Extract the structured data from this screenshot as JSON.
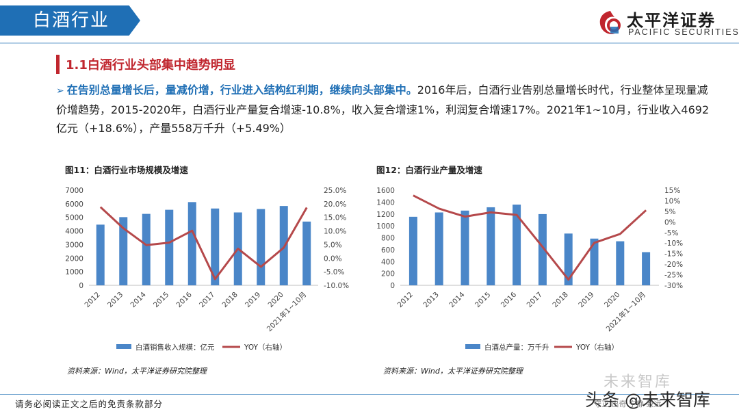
{
  "header": {
    "title": "白酒行业"
  },
  "brand": {
    "name_cn": "太平洋证券",
    "name_en": "PACIFIC SECURITIES",
    "color_red": "#c0262e",
    "color_blue": "#1f6fb5"
  },
  "section": {
    "title": "1.1白酒行业头部集中趋势明显"
  },
  "paragraph": {
    "bullet": "➢",
    "lead": "在告别总量增长后，量减价增，行业进入结构红利期，继续向头部集中。",
    "body": "2016年后，白酒行业告别总量增长时代，行业整体呈现量减价增趋势，2015-2020年，白酒行业产量复合增速-10.8%，收入复合增速1%，利润复合增速17%。2021年1~10月，行业收入4692亿元（+18.6%），产量558万千升（+5.49%）"
  },
  "chart_data": [
    {
      "type": "bar",
      "title": "图11：白酒行业市场规模及增速",
      "categories": [
        "2012",
        "2013",
        "2014",
        "2015",
        "2016",
        "2017",
        "2018",
        "2019",
        "2020",
        "2021年1~10月"
      ],
      "series": [
        {
          "name": "白酒销售收入规模：亿元",
          "kind": "bar",
          "axis": "left",
          "color": "#4a86c8",
          "values": [
            4466,
            5018,
            5258,
            5559,
            6126,
            5654,
            5364,
            5618,
            5836,
            4692
          ]
        },
        {
          "name": "YOY（右轴）",
          "kind": "line",
          "axis": "right",
          "color": "#b5494b",
          "values": [
            18.8,
            11.0,
            4.8,
            5.7,
            10.1,
            -7.7,
            3.5,
            -3.2,
            3.9,
            18.6
          ]
        }
      ],
      "ylim_left": [
        0,
        7000
      ],
      "ylim_right": [
        -10,
        25
      ],
      "yticks_left": [
        "0",
        "1000",
        "2000",
        "3000",
        "4000",
        "5000",
        "6000",
        "7000"
      ],
      "yticks_right": [
        "-10.0%",
        "-5.0%",
        "0.0%",
        "5.0%",
        "10.0%",
        "15.0%",
        "20.0%",
        "25.0%"
      ],
      "legend": "bottom",
      "source": "资料来源：Wind，太平洋证券研究院整理"
    },
    {
      "type": "bar",
      "title": "图12：白酒行业产量及增速",
      "categories": [
        "2012",
        "2013",
        "2014",
        "2015",
        "2016",
        "2017",
        "2018",
        "2019",
        "2020",
        "2021年1~10月"
      ],
      "series": [
        {
          "name": "白酒总产量：万千升",
          "kind": "bar",
          "axis": "left",
          "color": "#4a86c8",
          "values": [
            1153,
            1226,
            1257,
            1313,
            1358,
            1198,
            871,
            786,
            741,
            558
          ]
        },
        {
          "name": "YOY（右轴）",
          "kind": "line",
          "axis": "right",
          "color": "#b5494b",
          "values": [
            12.5,
            6.3,
            2.5,
            4.5,
            3.3,
            -11.8,
            -27.3,
            -9.9,
            -5.7,
            5.5
          ]
        }
      ],
      "ylim_left": [
        0,
        1600
      ],
      "ylim_right": [
        -30,
        15
      ],
      "yticks_left": [
        "0",
        "200",
        "400",
        "600",
        "800",
        "1000",
        "1200",
        "1400",
        "1600"
      ],
      "yticks_right": [
        "-30%",
        "-25%",
        "-20%",
        "-15%",
        "-10%",
        "-5%",
        "0%",
        "5%",
        "10%",
        "15%"
      ],
      "legend": "bottom",
      "source": "资料来源：Wind，太平洋证券研究院整理"
    }
  ],
  "footer": {
    "disclaimer": "请务必阅读正文之后的免责条款部分"
  },
  "watermark": {
    "line1": "未来智库",
    "line2": "头条 @未来智库",
    "line3": "守正  出奇  宁静  致远"
  }
}
